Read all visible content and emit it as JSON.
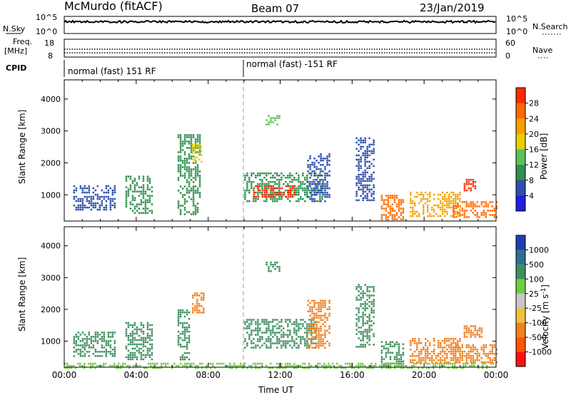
{
  "header": {
    "title": "McMurdo (fitACF)",
    "beam": "Beam 07",
    "date": "23/Jan/2019"
  },
  "status_panels": {
    "nsky": {
      "label": "N.Sky",
      "ticks": [
        "10^5",
        "10^0"
      ],
      "right_ticks": [
        "10^5",
        "10^0"
      ],
      "right_label": "N.Search"
    },
    "freq": {
      "label_line1": "Freq.",
      "label_line2": "[MHz]",
      "ticks": [
        "18",
        "8"
      ],
      "right_ticks": [
        "60",
        "0"
      ],
      "right_label": "Nave"
    },
    "cpid": {
      "label": "CPID",
      "segments": [
        "normal (fast) 151 RF",
        "normal (fast) -151 RF"
      ]
    }
  },
  "colorbars": {
    "power": {
      "label": "Power [dB]",
      "ticks": [
        "28",
        "24",
        "20",
        "16",
        "12",
        "8",
        "4"
      ],
      "colors": [
        "#ff2a00",
        "#ff6a00",
        "#f5a000",
        "#e8d000",
        "#5cc25c",
        "#2f8f4e",
        "#2f4fae",
        "#1f1fdf"
      ]
    },
    "velocity": {
      "label": "Velocity [m s",
      "label_sup": "-1",
      "label_end": "]",
      "ticks": [
        "1000",
        "500",
        "100",
        "25",
        "-25",
        "-100",
        "-500",
        "-1000"
      ],
      "colors": [
        "#1f3fb0",
        "#2f6f90",
        "#3f8f5f",
        "#6fcf3f",
        "#c8c8c8",
        "#f0c040",
        "#f08020",
        "#ff5500",
        "#ff1010"
      ]
    }
  },
  "chart_data": [
    {
      "type": "heatmap",
      "title": "Power",
      "xlabel": "",
      "ylabel": "Slant Range [km]",
      "x_ticks": [
        "00:00",
        "04:00",
        "08:00",
        "12:00",
        "16:00",
        "20:00",
        "00:00"
      ],
      "y_ticks": [
        "1000",
        "2000",
        "3000",
        "4000"
      ],
      "ylim": [
        180,
        4600
      ],
      "patches": [
        {
          "x": [
            0.5,
            2.8
          ],
          "y": [
            500,
            1300
          ],
          "color": "#2f4fae"
        },
        {
          "x": [
            3.4,
            4.9
          ],
          "y": [
            400,
            1600
          ],
          "color": "#2f8f4e"
        },
        {
          "x": [
            6.3,
            7.6
          ],
          "y": [
            400,
            2900
          ],
          "color": "#2f8f4e"
        },
        {
          "x": [
            7.1,
            7.6
          ],
          "y": [
            2000,
            2600
          ],
          "color": "#e8d000"
        },
        {
          "x": [
            10.0,
            14.3
          ],
          "y": [
            800,
            1700
          ],
          "color": "#2f8f4e"
        },
        {
          "x": [
            10.5,
            12.8
          ],
          "y": [
            900,
            1300
          ],
          "color": "#ff2a00"
        },
        {
          "x": [
            11.2,
            12.0
          ],
          "y": [
            3200,
            3500
          ],
          "color": "#5cc25c"
        },
        {
          "x": [
            13.5,
            14.8
          ],
          "y": [
            800,
            2300
          ],
          "color": "#2f4fae"
        },
        {
          "x": [
            16.2,
            17.2
          ],
          "y": [
            800,
            2800
          ],
          "color": "#2f4fae"
        },
        {
          "x": [
            17.6,
            18.9
          ],
          "y": [
            200,
            1000
          ],
          "color": "#ff6a00"
        },
        {
          "x": [
            19.2,
            22.0
          ],
          "y": [
            300,
            1100
          ],
          "color": "#f5a000"
        },
        {
          "x": [
            21.6,
            24.0
          ],
          "y": [
            300,
            800
          ],
          "color": "#ff6a00"
        },
        {
          "x": [
            22.2,
            22.8
          ],
          "y": [
            1100,
            1500
          ],
          "color": "#ff2a00"
        }
      ]
    },
    {
      "type": "heatmap",
      "title": "Velocity",
      "xlabel": "Time UT",
      "ylabel": "Slant Range [km]",
      "x_ticks": [
        "00:00",
        "04:00",
        "08:00",
        "12:00",
        "16:00",
        "20:00",
        "00:00"
      ],
      "y_ticks": [
        "1000",
        "2000",
        "3000",
        "4000"
      ],
      "ylim": [
        180,
        4600
      ],
      "patches": [
        {
          "x": [
            0.5,
            2.8
          ],
          "y": [
            500,
            1300
          ],
          "color": "#3f8f5f"
        },
        {
          "x": [
            3.4,
            4.9
          ],
          "y": [
            400,
            1600
          ],
          "color": "#3f8f5f"
        },
        {
          "x": [
            6.3,
            7.0
          ],
          "y": [
            400,
            2000
          ],
          "color": "#3f8f5f"
        },
        {
          "x": [
            7.1,
            7.7
          ],
          "y": [
            1900,
            2600
          ],
          "color": "#f08020"
        },
        {
          "x": [
            10.0,
            14.0
          ],
          "y": [
            800,
            1700
          ],
          "color": "#3f8f5f"
        },
        {
          "x": [
            11.2,
            12.0
          ],
          "y": [
            3200,
            3500
          ],
          "color": "#3f8f5f"
        },
        {
          "x": [
            13.5,
            14.8
          ],
          "y": [
            800,
            2300
          ],
          "color": "#f08020"
        },
        {
          "x": [
            16.2,
            17.2
          ],
          "y": [
            800,
            2800
          ],
          "color": "#3f8f5f"
        },
        {
          "x": [
            17.6,
            18.9
          ],
          "y": [
            200,
            1000
          ],
          "color": "#3f8f5f"
        },
        {
          "x": [
            19.2,
            22.0
          ],
          "y": [
            300,
            1100
          ],
          "color": "#f08020"
        },
        {
          "x": [
            21.6,
            24.0
          ],
          "y": [
            300,
            900
          ],
          "color": "#f08020"
        },
        {
          "x": [
            22.2,
            23.2
          ],
          "y": [
            1100,
            1500
          ],
          "color": "#f08020"
        },
        {
          "x": [
            0.0,
            24.0
          ],
          "y": [
            180,
            320
          ],
          "color": "#6fcf3f"
        }
      ]
    }
  ]
}
